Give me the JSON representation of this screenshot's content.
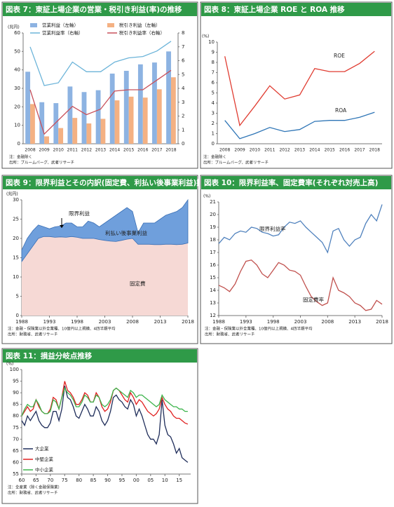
{
  "chart_data": [
    {
      "type": "combo",
      "title": "図表 7：東証上場企業の営業・税引き利益(率)の推移",
      "y_label": "(兆円)",
      "categories": [
        "2008",
        "2009",
        "2010",
        "2011",
        "2012",
        "2013",
        "2014",
        "2015",
        "2016",
        "2017",
        "2018"
      ],
      "ylim": [
        0,
        60
      ],
      "yticks": [
        0,
        10,
        20,
        30,
        40,
        50,
        60
      ],
      "y2lim": [
        0,
        8
      ],
      "y2ticks": [
        0,
        1,
        2,
        3,
        4,
        5,
        6,
        7,
        8
      ],
      "series": [
        {
          "name": "営業利益（左軸）",
          "type": "bar",
          "color": "#8db3e2",
          "values": [
            39,
            22.5,
            22,
            31,
            28,
            29,
            38,
            39.5,
            43,
            44,
            50
          ]
        },
        {
          "name": "税引き利益（左軸）",
          "type": "bar",
          "color": "#f4b183",
          "values": [
            21.5,
            4,
            8.5,
            14,
            11,
            13.5,
            23.5,
            25.5,
            25,
            29.5,
            36
          ]
        },
        {
          "name": "営業利益率（右軸）",
          "type": "line",
          "axis": "y2",
          "color": "#6cb4d9",
          "values": [
            7.0,
            4.2,
            4.4,
            5.9,
            5.2,
            5.2,
            5.9,
            6.2,
            6.3,
            6.7,
            7.4
          ]
        },
        {
          "name": "税引き利益率（右軸）",
          "type": "line",
          "axis": "y2",
          "color": "#c8505a",
          "values": [
            3.9,
            0.7,
            1.7,
            2.7,
            2.1,
            2.5,
            3.8,
            3.9,
            3.9,
            4.6,
            5.3
          ]
        }
      ],
      "legend": true,
      "notes": [
        "注：金融除く",
        "出所：ブルームバーグ、武者リサーチ"
      ]
    },
    {
      "type": "line",
      "title": "図表 8：東証上場企業 ROE と ROA 推移",
      "y_label": "(%)",
      "categories": [
        "2008",
        "2009",
        "2010",
        "2011",
        "2012",
        "2013",
        "2014",
        "2015",
        "2016",
        "2017",
        "2018"
      ],
      "ylim": [
        0,
        10
      ],
      "yticks": [
        0,
        1,
        2,
        3,
        4,
        5,
        6,
        7,
        8,
        9,
        10
      ],
      "series": [
        {
          "name": "ROE",
          "type": "line",
          "color": "#e03c31",
          "values": [
            8.6,
            1.8,
            3.7,
            5.7,
            4.4,
            4.8,
            7.4,
            7.1,
            7.1,
            7.9,
            9.1
          ]
        },
        {
          "name": "ROA",
          "type": "line",
          "color": "#2e75b6",
          "values": [
            2.3,
            0.5,
            1.0,
            1.6,
            1.2,
            1.4,
            2.2,
            2.3,
            2.3,
            2.6,
            3.1
          ]
        }
      ],
      "notes": [
        "注：金融除く",
        "出所：ブルームバーグ、武者リサーチ"
      ]
    },
    {
      "type": "area",
      "stacked": true,
      "title": "図表 9：限界利益とその内訳(固定費、利払い後事業利益)推移",
      "y_label": "(兆円)",
      "x": [
        1988,
        1989,
        1990,
        1991,
        1992,
        1993,
        1994,
        1995,
        1996,
        1997,
        1998,
        1999,
        2000,
        2001,
        2002,
        2003,
        2004,
        2005,
        2006,
        2007,
        2008,
        2009,
        2010,
        2011,
        2012,
        2013,
        2014,
        2015,
        2016,
        2017,
        2018
      ],
      "xlim": [
        1988,
        2018
      ],
      "xticks": [
        1988,
        1993,
        1998,
        2003,
        2008,
        2013,
        2018
      ],
      "ylim": [
        0,
        30
      ],
      "yticks": [
        0,
        5,
        10,
        15,
        20,
        25,
        30
      ],
      "series": [
        {
          "name": "固定費",
          "type": "area",
          "color": "#f6d9d5",
          "values": [
            14,
            16,
            18,
            20,
            20.5,
            20.5,
            20.3,
            20.4,
            20.3,
            20.5,
            20.3,
            20,
            20,
            20,
            19.7,
            19.5,
            19.3,
            19.2,
            19.5,
            19.8,
            20,
            18.5,
            18.5,
            18.5,
            18.4,
            18.4,
            18.5,
            18.5,
            18.4,
            18.5,
            18.8
          ]
        },
        {
          "name": "利払い後事業利益",
          "type": "area",
          "color": "#6f9fdc",
          "values": [
            3,
            4,
            4,
            3.5,
            2.5,
            2,
            2.7,
            2.8,
            3.7,
            3.5,
            2.7,
            3,
            4.5,
            4,
            3.3,
            4.5,
            5.7,
            6.8,
            7.5,
            8.2,
            7,
            3,
            5.5,
            5.5,
            5.6,
            6.6,
            7.5,
            8,
            8.6,
            9.5,
            11.2
          ]
        }
      ],
      "annotations": [
        {
          "text": "限界利益"
        }
      ],
      "notes": [
        "注：金融・保険業以外全業種、10億円以上規模、4四半期平均",
        "出所：財務省、武者リサーチ"
      ]
    },
    {
      "type": "line",
      "title": "図表 10：限界利益率、固定費率(それぞれ対売上高)",
      "y_label": "(%)",
      "x": [
        1988,
        1989,
        1990,
        1991,
        1992,
        1993,
        1994,
        1995,
        1996,
        1997,
        1998,
        1999,
        2000,
        2001,
        2002,
        2003,
        2004,
        2005,
        2006,
        2007,
        2008,
        2009,
        2010,
        2011,
        2012,
        2013,
        2014,
        2015,
        2016,
        2017,
        2018
      ],
      "xlim": [
        1988,
        2018
      ],
      "xticks": [
        1988,
        1993,
        1998,
        2003,
        2008,
        2013,
        2018
      ],
      "ylim": [
        12,
        21
      ],
      "yticks": [
        12,
        13,
        14,
        15,
        16,
        17,
        18,
        19,
        20,
        21
      ],
      "series": [
        {
          "name": "限界利益率",
          "type": "line",
          "color": "#4f81bd",
          "values": [
            17.7,
            18.2,
            18.0,
            18.5,
            18.7,
            18.6,
            19.0,
            18.9,
            18.6,
            18.5,
            18.3,
            18.4,
            19.0,
            19.4,
            19.3,
            19.5,
            19.0,
            18.6,
            18.2,
            17.8,
            17.0,
            18.7,
            18.9,
            18.0,
            17.5,
            18.0,
            18.2,
            19.3,
            20.0,
            19.5,
            20.8
          ]
        },
        {
          "name": "固定費率",
          "type": "line",
          "color": "#c0504d",
          "values": [
            14.4,
            14.2,
            13.9,
            14.5,
            15.5,
            16.3,
            16.4,
            16.0,
            15.3,
            15.0,
            15.6,
            16.2,
            16.0,
            15.6,
            15.5,
            15.2,
            14.3,
            13.5,
            13.1,
            12.8,
            13.0,
            15.0,
            14.0,
            13.8,
            13.5,
            13.0,
            12.8,
            12.4,
            12.5,
            13.2,
            12.9
          ]
        }
      ],
      "notes": [
        "注：金融・保険業以外全業種、10億円以上規模、4四半期平均",
        "出所：財務省、武者リサーチ"
      ]
    },
    {
      "type": "line",
      "title": "図表 11：損益分岐点推移",
      "y_label": "(%)",
      "x": [
        1960,
        1961,
        1962,
        1963,
        1964,
        1965,
        1966,
        1967,
        1968,
        1969,
        1970,
        1971,
        1972,
        1973,
        1974,
        1975,
        1976,
        1977,
        1978,
        1979,
        1980,
        1981,
        1982,
        1983,
        1984,
        1985,
        1986,
        1987,
        1988,
        1989,
        1990,
        1991,
        1992,
        1993,
        1994,
        1995,
        1996,
        1997,
        1998,
        1999,
        2000,
        2001,
        2002,
        2003,
        2004,
        2005,
        2006,
        2007,
        2008,
        2009,
        2010,
        2011,
        2012,
        2013,
        2014,
        2015,
        2016,
        2017,
        2018
      ],
      "xlim": [
        1960,
        2019
      ],
      "xticks": [
        {
          "value": 1960,
          "label": "60"
        },
        {
          "value": 1965,
          "label": "65"
        },
        {
          "value": 1970,
          "label": "70"
        },
        {
          "value": 1975,
          "label": "75"
        },
        {
          "value": 1980,
          "label": "80"
        },
        {
          "value": 1985,
          "label": "85"
        },
        {
          "value": 1990,
          "label": "90"
        },
        {
          "value": 1995,
          "label": "95"
        },
        {
          "value": 2000,
          "label": "00"
        },
        {
          "value": 2005,
          "label": "05"
        },
        {
          "value": 2010,
          "label": "10"
        },
        {
          "value": 2015,
          "label": "15"
        }
      ],
      "ylim": [
        55,
        100
      ],
      "yticks": [
        55,
        60,
        65,
        70,
        75,
        80,
        85,
        90,
        95,
        100
      ],
      "series": [
        {
          "name": "大企業",
          "type": "line",
          "color": "#1f2d5a",
          "values": [
            78,
            76,
            80,
            78,
            80,
            82,
            78,
            76,
            75,
            75,
            77,
            82,
            82,
            78,
            83,
            93,
            88,
            87,
            84,
            80,
            79,
            82,
            85,
            83,
            80,
            80,
            84,
            82,
            78,
            76,
            78,
            82,
            88,
            89,
            87,
            86,
            84,
            83,
            87,
            85,
            80,
            83,
            80,
            76,
            72,
            70,
            70,
            68,
            72,
            87,
            76,
            72,
            71,
            68,
            64,
            66,
            62,
            61,
            60
          ]
        },
        {
          "name": "中堅企業",
          "type": "line",
          "color": "#e02020",
          "values": [
            80,
            82,
            84,
            82,
            83,
            87,
            84,
            82,
            81,
            81,
            83,
            88,
            87,
            83,
            88,
            95,
            91,
            90,
            88,
            85,
            85,
            87,
            90,
            89,
            86,
            86,
            90,
            88,
            84,
            82,
            83,
            86,
            91,
            92,
            91,
            89,
            87,
            86,
            90,
            88,
            85,
            87,
            86,
            84,
            82,
            81,
            80,
            81,
            83,
            88,
            85,
            83,
            82,
            80,
            79,
            79,
            78,
            77,
            76.5
          ]
        },
        {
          "name": "中小企業",
          "type": "line",
          "color": "#3cb44b",
          "values": [
            80,
            83,
            85,
            84,
            84,
            87,
            85,
            82,
            81,
            81,
            82,
            87,
            86,
            83,
            88,
            92,
            90,
            89,
            87,
            84,
            84,
            86,
            89,
            88,
            86,
            86,
            89,
            88,
            85,
            84,
            85,
            87,
            91,
            92,
            91,
            90,
            89,
            88,
            91,
            90,
            88,
            89,
            89,
            88,
            87,
            86,
            85,
            84,
            85,
            89,
            87,
            86,
            85,
            84,
            84,
            83,
            83,
            82,
            82
          ]
        }
      ],
      "legend": true,
      "notes": [
        "注：全産業（除く金融保険業）",
        "出所：財務省、武者リサーチ"
      ]
    }
  ]
}
